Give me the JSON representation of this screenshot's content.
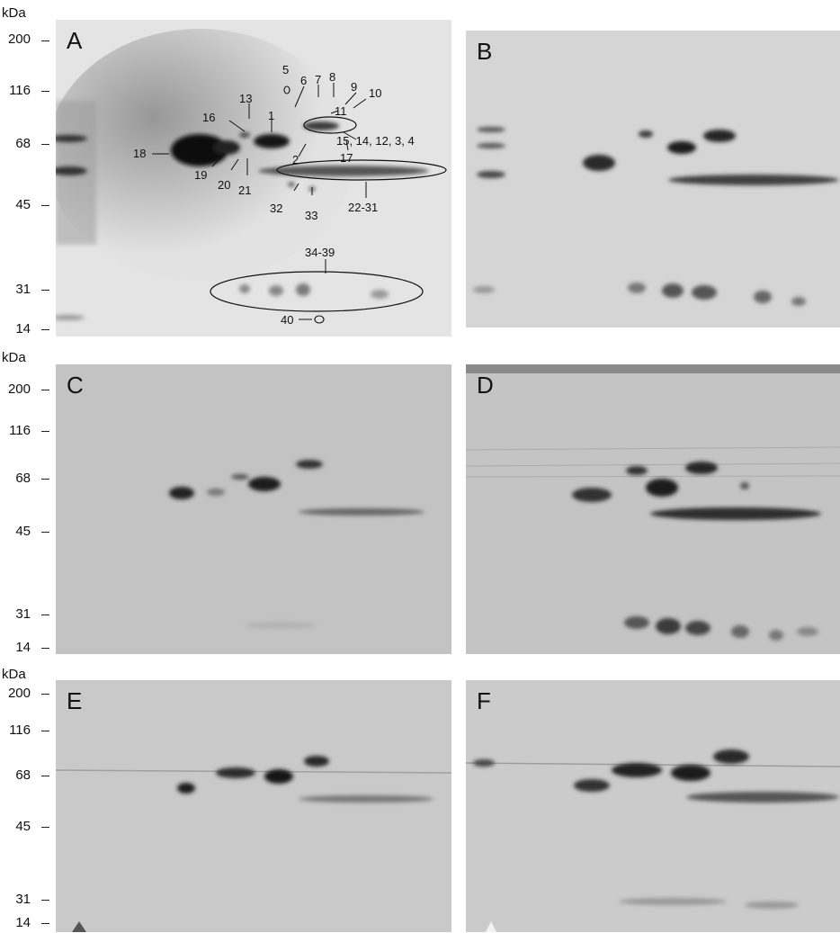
{
  "axis_unit": "kDa",
  "mw_ticks": [
    "200",
    "116",
    "68",
    "45",
    "31",
    "14"
  ],
  "panels": [
    {
      "id": "A",
      "label": "A",
      "tone": "#d6d6d6",
      "dark": 1.0
    },
    {
      "id": "B",
      "label": "B",
      "tone": "#c9c9c9",
      "dark": 0.75
    },
    {
      "id": "C",
      "label": "C",
      "tone": "#bdbdbd",
      "dark": 0.7
    },
    {
      "id": "D",
      "label": "D",
      "tone": "#bebebe",
      "dark": 0.9
    },
    {
      "id": "E",
      "label": "E",
      "tone": "#c4c4c4",
      "dark": 0.8
    },
    {
      "id": "F",
      "label": "F",
      "tone": "#c7c7c7",
      "dark": 0.85
    }
  ],
  "spot_labels": {
    "s1": "1",
    "s2": "2",
    "s5": "5",
    "s6": "6",
    "s7": "7",
    "s8": "8",
    "s9": "9",
    "s10": "10",
    "s11": "11",
    "s13": "13",
    "s16": "16",
    "s17": "17",
    "s18": "18",
    "s19": "19",
    "s20": "20",
    "s21": "21",
    "s32": "32",
    "s33": "33",
    "s40": "40",
    "g15": "15, 14, 12, 3, 4",
    "g22": "22-31",
    "g34": "34-39"
  }
}
